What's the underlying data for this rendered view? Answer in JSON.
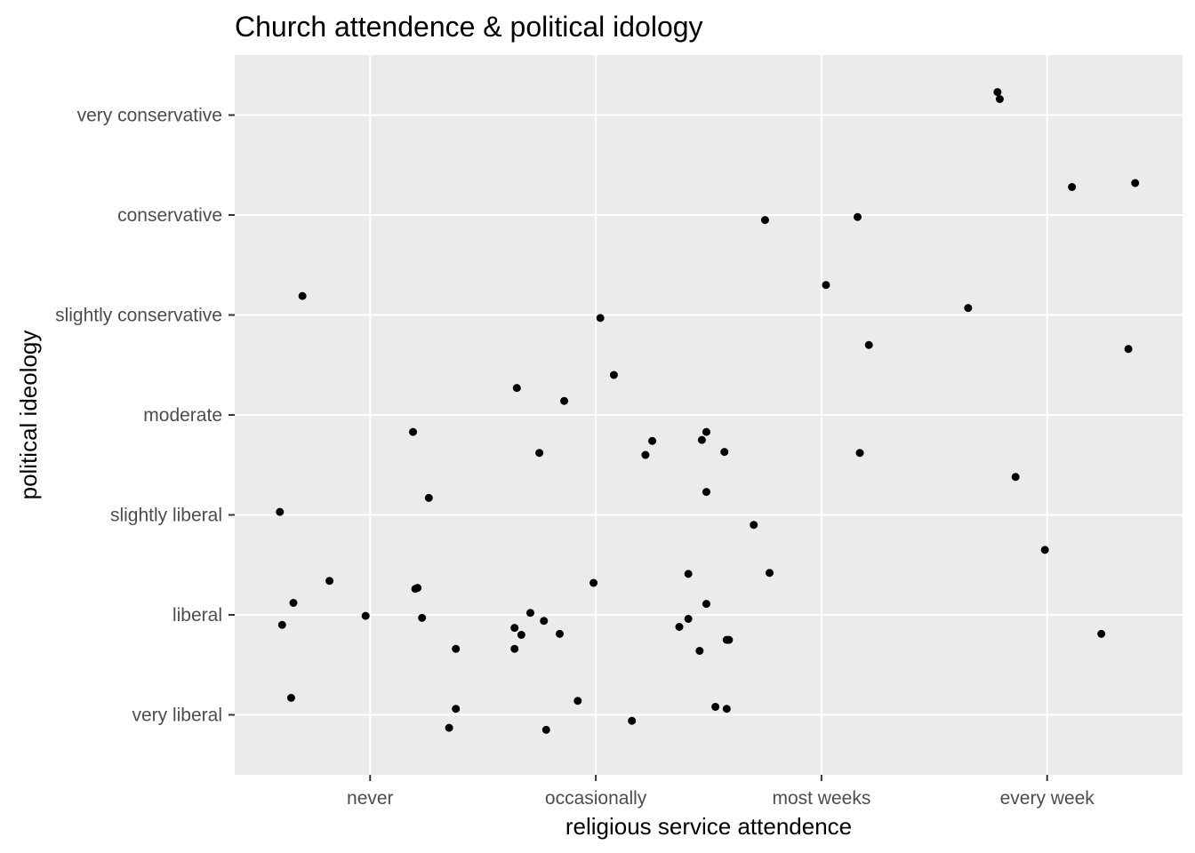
{
  "chart_data": {
    "type": "scatter",
    "title": "Church attendence & political idology",
    "xlabel": "religious service attendence",
    "ylabel": "political ideology",
    "x_categories": [
      "never",
      "occasionally",
      "most weeks",
      "every week"
    ],
    "y_categories": [
      "very liberal",
      "liberal",
      "slightly liberal",
      "moderate",
      "slightly conservative",
      "conservative",
      "very conservative"
    ],
    "grid": true,
    "background": "#ebebeb",
    "grid_color": "#ffffff",
    "point_color": "#000000",
    "points": [
      {
        "x": 3.78,
        "y": 7.23
      },
      {
        "x": 3.79,
        "y": 7.16
      },
      {
        "x": 4.11,
        "y": 6.28
      },
      {
        "x": 4.39,
        "y": 6.32
      },
      {
        "x": 2.75,
        "y": 5.95
      },
      {
        "x": 3.16,
        "y": 5.98
      },
      {
        "x": 0.7,
        "y": 5.19
      },
      {
        "x": 3.02,
        "y": 5.3
      },
      {
        "x": 3.65,
        "y": 5.07
      },
      {
        "x": 2.02,
        "y": 4.97
      },
      {
        "x": 3.21,
        "y": 4.7
      },
      {
        "x": 4.36,
        "y": 4.66
      },
      {
        "x": 1.65,
        "y": 4.27
      },
      {
        "x": 2.08,
        "y": 4.4
      },
      {
        "x": 1.86,
        "y": 4.14
      },
      {
        "x": 1.19,
        "y": 3.83
      },
      {
        "x": 2.22,
        "y": 3.6
      },
      {
        "x": 2.25,
        "y": 3.74
      },
      {
        "x": 1.75,
        "y": 3.62
      },
      {
        "x": 2.47,
        "y": 3.75
      },
      {
        "x": 2.49,
        "y": 3.83
      },
      {
        "x": 2.57,
        "y": 3.63
      },
      {
        "x": 3.17,
        "y": 3.62
      },
      {
        "x": 2.49,
        "y": 3.23
      },
      {
        "x": 3.86,
        "y": 3.38
      },
      {
        "x": 1.26,
        "y": 3.17
      },
      {
        "x": 0.6,
        "y": 3.03
      },
      {
        "x": 2.7,
        "y": 2.9
      },
      {
        "x": 3.99,
        "y": 2.65
      },
      {
        "x": 2.41,
        "y": 2.41
      },
      {
        "x": 2.77,
        "y": 2.42
      },
      {
        "x": 0.82,
        "y": 2.34
      },
      {
        "x": 1.2,
        "y": 2.26
      },
      {
        "x": 1.21,
        "y": 2.27
      },
      {
        "x": 1.99,
        "y": 2.32
      },
      {
        "x": 0.66,
        "y": 2.12
      },
      {
        "x": 2.49,
        "y": 2.11
      },
      {
        "x": 0.98,
        "y": 1.99
      },
      {
        "x": 1.23,
        "y": 1.97
      },
      {
        "x": 0.61,
        "y": 1.9
      },
      {
        "x": 1.71,
        "y": 2.02
      },
      {
        "x": 1.77,
        "y": 1.94
      },
      {
        "x": 2.41,
        "y": 1.96
      },
      {
        "x": 2.37,
        "y": 1.88
      },
      {
        "x": 1.64,
        "y": 1.87
      },
      {
        "x": 1.67,
        "y": 1.8
      },
      {
        "x": 1.84,
        "y": 1.81
      },
      {
        "x": 4.24,
        "y": 1.81
      },
      {
        "x": 2.58,
        "y": 1.75
      },
      {
        "x": 2.59,
        "y": 1.75
      },
      {
        "x": 1.38,
        "y": 1.66
      },
      {
        "x": 1.64,
        "y": 1.66
      },
      {
        "x": 2.46,
        "y": 1.64
      },
      {
        "x": 0.65,
        "y": 1.17
      },
      {
        "x": 1.92,
        "y": 1.14
      },
      {
        "x": 1.38,
        "y": 1.06
      },
      {
        "x": 2.53,
        "y": 1.08
      },
      {
        "x": 2.58,
        "y": 1.06
      },
      {
        "x": 2.16,
        "y": 0.94
      },
      {
        "x": 1.35,
        "y": 0.87
      },
      {
        "x": 1.78,
        "y": 0.85
      }
    ]
  }
}
